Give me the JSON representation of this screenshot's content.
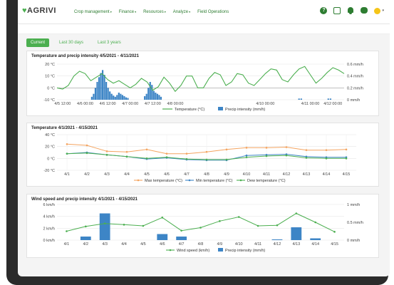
{
  "app": {
    "logo": "AGRIVI",
    "menu": [
      {
        "label": "Crop management",
        "caret": "▾"
      },
      {
        "label": "Finance",
        "caret": "▾"
      },
      {
        "label": "Resources",
        "caret": "▾"
      },
      {
        "label": "Analyze",
        "caret": "▾"
      },
      {
        "label": "Field Operations",
        "caret": ""
      }
    ]
  },
  "tabs": [
    {
      "label": "Current",
      "active": true
    },
    {
      "label": "Last 30 days",
      "active": false
    },
    {
      "label": "Last 3 years",
      "active": false
    }
  ],
  "colors": {
    "green": "#4caf50",
    "blue_bar": "#3d85c6",
    "orange": "#f4a460",
    "blue_line": "#3d85c6",
    "dark_green": "#2e7d32"
  },
  "chart_data": [
    {
      "type": "line",
      "title": "Temperature and precip intensity 4/5/2021 - 4/11/2021",
      "y_left_ticks": [
        "20 °C",
        "10 °C",
        "0 °C",
        "-10 °C"
      ],
      "y_left_range": [
        -10,
        20
      ],
      "y_right_ticks": [
        "0.6 mm/h",
        "0.4 mm/h",
        "0.2 mm/h",
        "0 mm/h"
      ],
      "y_right_range": [
        0,
        0.6
      ],
      "x_ticks": [
        "4/5 12:00",
        "4/6 00:00",
        "4/6 12:00",
        "4/7 00:00",
        "4/7 12:00",
        "4/8 00:00",
        "4/10 00:00",
        "4/11 00:00",
        "4/12 00:00"
      ],
      "x_tick_index": [
        0,
        1,
        2,
        3,
        4,
        5,
        9,
        11,
        12
      ],
      "x_range": [
        -0.25,
        12.5
      ],
      "series": [
        {
          "name": "Temperature (°C)",
          "kind": "line",
          "axis": "left",
          "x": [
            -0.25,
            0,
            0.25,
            0.5,
            0.75,
            1,
            1.25,
            1.5,
            1.75,
            2,
            2.25,
            2.5,
            2.75,
            3,
            3.25,
            3.5,
            3.75,
            4,
            4.25,
            4.5,
            4.75,
            5,
            5.25,
            5.5,
            5.75,
            6,
            6.25,
            6.5,
            6.75,
            7,
            7.25,
            7.5,
            7.75,
            8,
            8.25,
            8.5,
            8.75,
            9,
            9.25,
            9.5,
            9.75,
            10,
            10.25,
            10.5,
            10.75,
            11,
            11.25,
            11.5,
            11.75,
            12,
            12.25,
            12.5
          ],
          "y": [
            0,
            -1,
            2,
            10,
            14,
            12,
            6,
            9,
            12,
            7,
            4,
            6,
            3,
            0,
            3,
            8,
            5,
            -2,
            1,
            9,
            4,
            -3,
            2,
            10,
            10,
            0,
            0,
            8,
            13,
            11,
            2,
            5,
            12,
            11,
            4,
            2,
            7,
            12,
            16,
            15,
            7,
            5,
            11,
            16,
            18,
            11,
            4,
            8,
            13,
            17,
            15,
            12
          ]
        },
        {
          "name": "Precip intensity (mm/h)",
          "kind": "bar",
          "axis": "right",
          "x": [
            1.3,
            1.38,
            1.46,
            1.54,
            1.62,
            1.7,
            1.78,
            1.86,
            1.94,
            2.02,
            2.1,
            2.18,
            2.26,
            2.34,
            2.42,
            2.5,
            2.58,
            2.66,
            2.74,
            2.82,
            2.9,
            3.65,
            3.73,
            3.81,
            3.89,
            3.97,
            4.05,
            4.13,
            4.21,
            4.29,
            4.37,
            10.5,
            10.6,
            11.8,
            11.9
          ],
          "y": [
            0.05,
            0.1,
            0.2,
            0.3,
            0.38,
            0.45,
            0.5,
            0.42,
            0.3,
            0.2,
            0.14,
            0.1,
            0.07,
            0.05,
            0.08,
            0.12,
            0.1,
            0.08,
            0.06,
            0.04,
            0.03,
            0.06,
            0.1,
            0.2,
            0.3,
            0.25,
            0.15,
            0.12,
            0.1,
            0.08,
            0.05,
            0.02,
            0.02,
            0.02,
            0.02
          ]
        }
      ],
      "legend": "bottom"
    },
    {
      "type": "line",
      "title": "Temperature 4/1/2021 - 4/15/2021",
      "y_left_ticks": [
        "40 °C",
        "20 °C",
        "0 °C",
        "-20 °C"
      ],
      "y_range": [
        -20,
        40
      ],
      "categories": [
        "4/1",
        "4/2",
        "4/3",
        "4/4",
        "4/5",
        "4/6",
        "4/7",
        "4/8",
        "4/9",
        "4/10",
        "4/11",
        "4/12",
        "4/13",
        "4/14",
        "4/15"
      ],
      "series": [
        {
          "name": "Max temperature (°C)",
          "color": "#f4a460",
          "values": [
            24,
            22,
            12,
            11,
            15,
            8,
            8,
            11,
            15,
            18,
            18,
            19,
            14,
            14,
            15
          ]
        },
        {
          "name": "Min temperature (°C)",
          "color": "#3d85c6",
          "values": [
            8,
            10,
            6,
            3,
            -1,
            1,
            -2,
            -3,
            -3,
            5,
            6,
            7,
            3,
            2,
            2
          ]
        },
        {
          "name": "Dew temperature (°C)",
          "color": "#4caf50",
          "values": [
            8,
            9,
            6,
            3,
            0,
            2,
            -1,
            -2,
            -2,
            2,
            4,
            5,
            1,
            0,
            0
          ]
        }
      ],
      "legend": "bottom"
    },
    {
      "type": "bar",
      "title": "Wind speed and precip intensity 4/1/2021 - 4/15/2021",
      "y_left_ticks": [
        "6 km/h",
        "4 km/h",
        "2 km/h",
        "0 km/h"
      ],
      "y_left_range": [
        0,
        6
      ],
      "y_right_ticks": [
        "1 mm/h",
        "0.5 mm/h",
        "0 mm/h"
      ],
      "y_right_range": [
        0,
        1
      ],
      "categories": [
        "4/1",
        "4/2",
        "4/3",
        "4/4",
        "4/5",
        "4/6",
        "4/7",
        "4/8",
        "4/9",
        "4/10",
        "4/11",
        "4/12",
        "4/13",
        "4/14",
        "4/15"
      ],
      "series": [
        {
          "name": "Wind speed (km/h)",
          "kind": "line",
          "axis": "left",
          "values": [
            1.5,
            2.3,
            2.8,
            2.6,
            2.4,
            3.8,
            1.6,
            2.1,
            3.2,
            3.9,
            2.4,
            2.5,
            4.5,
            3.0,
            1.4
          ]
        },
        {
          "name": "Precip intensity (mm/h)",
          "kind": "bar",
          "axis": "right",
          "values": [
            0,
            0.1,
            0.75,
            0,
            0,
            0.17,
            0.1,
            0,
            0,
            0,
            0,
            0.02,
            0.36,
            0.05,
            0
          ]
        }
      ],
      "legend": "bottom"
    }
  ]
}
